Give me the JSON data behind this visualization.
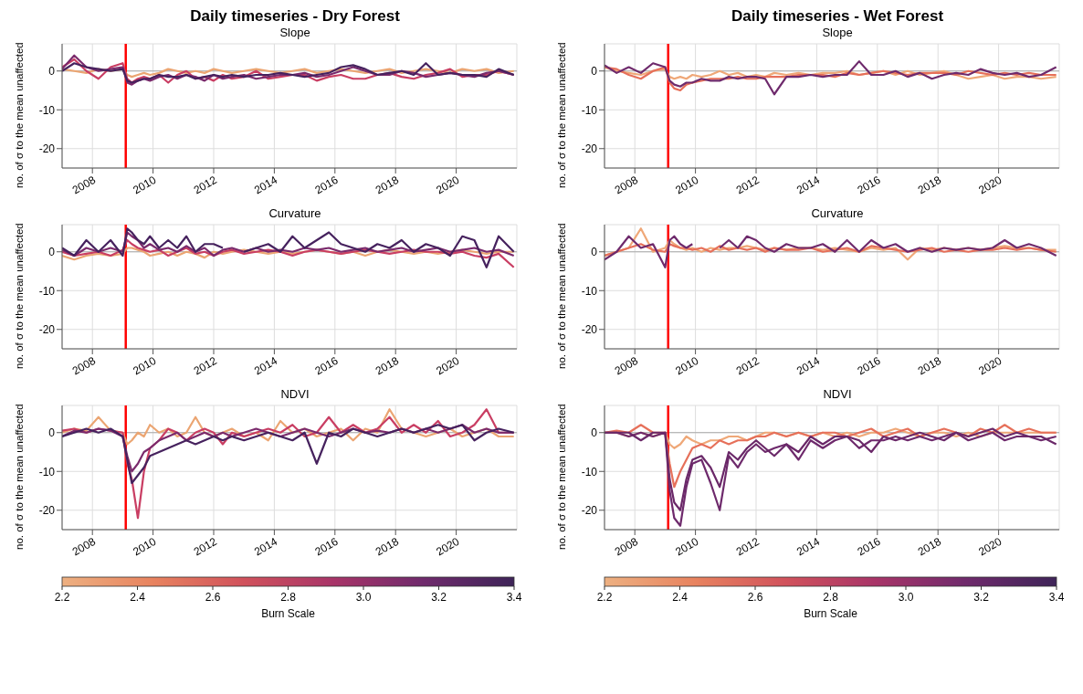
{
  "chart_data": [
    {
      "type": "line",
      "title": "Daily timeseries - Dry Forest",
      "subtitle": "Slope",
      "ylabel": "no. of σ to the mean unaffected",
      "x": [
        2007.0,
        2007.4,
        2007.8,
        2008.2,
        2008.6,
        2009.0,
        2009.15,
        2009.3,
        2009.5,
        2009.7,
        2009.9,
        2010.2,
        2010.5,
        2010.8,
        2011.1,
        2011.4,
        2011.7,
        2012.0,
        2012.3,
        2012.6,
        2013.0,
        2013.4,
        2013.8,
        2014.2,
        2014.6,
        2015.0,
        2015.4,
        2015.8,
        2016.2,
        2016.6,
        2017.0,
        2017.4,
        2017.8,
        2018.2,
        2018.6,
        2019.0,
        2019.4,
        2019.8,
        2020.2,
        2020.6,
        2021.0,
        2021.4,
        2021.9
      ],
      "xlim": [
        2007,
        2022
      ],
      "xticks": [
        2008,
        2010,
        2012,
        2014,
        2016,
        2018,
        2020
      ],
      "ylim": [
        -25,
        7
      ],
      "yticks": [
        -20,
        -10,
        0
      ],
      "grid": true,
      "ref_lines": [
        {
          "axis": "y",
          "value": 0,
          "color": "#aaaaaa"
        },
        {
          "axis": "x",
          "value": 2009.1,
          "color": "#ff0000"
        }
      ],
      "series": [
        {
          "color": "#eba572",
          "values": [
            0.5,
            0,
            -0.5,
            0.5,
            0,
            0.5,
            -1,
            -1.5,
            -1,
            -0.5,
            -1,
            -0.5,
            0.5,
            0,
            -0.5,
            0,
            -0.5,
            0.5,
            0,
            -0.5,
            0,
            0.5,
            0,
            -0.5,
            0,
            0.5,
            -0.5,
            0,
            0.5,
            0,
            -0.5,
            0,
            0.5,
            -0.5,
            0,
            0.5,
            0,
            -0.5,
            0.5,
            0,
            0.5,
            -0.5,
            0
          ]
        },
        {
          "color": "#c93e63",
          "values": [
            1,
            3,
            0,
            -2,
            1,
            2,
            -2,
            -3,
            -2,
            -1.5,
            -2,
            -1,
            -3,
            -1,
            0,
            -2,
            -1.5,
            -2.5,
            -1,
            -2,
            -1.5,
            0,
            -2,
            -1.5,
            -1,
            -1,
            -2.5,
            -1.5,
            -1,
            -2,
            -2,
            -1,
            -0.5,
            -1.5,
            -2,
            -1,
            -0.5,
            0.5,
            -1.5,
            -1,
            -1,
            0,
            -1
          ]
        },
        {
          "color": "#7a2a6c",
          "values": [
            0.5,
            4,
            1,
            0,
            0.5,
            1,
            -3,
            -3.5,
            -2.5,
            -2,
            -2.5,
            -1.5,
            -1,
            -2,
            -1,
            -1.5,
            -2.5,
            -1,
            -2,
            -1.5,
            -1,
            -2,
            -1.5,
            -1,
            -1,
            -0.5,
            -1.5,
            -1,
            0,
            1,
            0,
            -1,
            -1,
            0,
            -0.5,
            -1.5,
            -1,
            -0.5,
            -1,
            -1.5,
            -0.5,
            0,
            -1
          ]
        },
        {
          "color": "#46225e",
          "values": [
            0,
            2,
            1,
            0.5,
            0,
            0.5,
            -2.5,
            -3,
            -2.5,
            -2,
            -2,
            -1,
            -1.5,
            -1.5,
            -1,
            -2,
            -1.5,
            -1,
            -1.5,
            -1,
            -1.5,
            -1,
            -1,
            -0.5,
            -1,
            -1.5,
            -1,
            -0.5,
            1,
            1.5,
            0.5,
            -1,
            -0.5,
            0,
            -1,
            2,
            -1,
            -0.5,
            -1,
            -1,
            -1.5,
            0.5,
            -1
          ]
        }
      ]
    },
    {
      "type": "line",
      "title": "Daily timeseries - Wet Forest",
      "subtitle": "Slope",
      "ylabel": "no. of σ to the mean unaffected",
      "x": [
        2007.0,
        2007.4,
        2007.8,
        2008.2,
        2008.6,
        2009.0,
        2009.15,
        2009.3,
        2009.5,
        2009.7,
        2009.9,
        2010.2,
        2010.5,
        2010.8,
        2011.1,
        2011.4,
        2011.7,
        2012.0,
        2012.3,
        2012.6,
        2013.0,
        2013.4,
        2013.8,
        2014.2,
        2014.6,
        2015.0,
        2015.4,
        2015.8,
        2016.2,
        2016.6,
        2017.0,
        2017.4,
        2017.8,
        2018.2,
        2018.6,
        2019.0,
        2019.4,
        2019.8,
        2020.2,
        2020.6,
        2021.0,
        2021.4,
        2021.9
      ],
      "xlim": [
        2007,
        2022
      ],
      "xticks": [
        2008,
        2010,
        2012,
        2014,
        2016,
        2018,
        2020
      ],
      "ylim": [
        -25,
        7
      ],
      "yticks": [
        -20,
        -10,
        0
      ],
      "grid": true,
      "ref_lines": [
        {
          "axis": "y",
          "value": 0,
          "color": "#aaaaaa"
        },
        {
          "axis": "x",
          "value": 2009.1,
          "color": "#ff0000"
        }
      ],
      "series": [
        {
          "color": "#efa878",
          "values": [
            1,
            0,
            -0.5,
            -1,
            0,
            0.5,
            -1.5,
            -2,
            -1.5,
            -2,
            -1,
            -1.5,
            -1,
            0,
            -1,
            -0.5,
            -1.5,
            -1,
            -1.5,
            -0.5,
            -1,
            -0.5,
            -1,
            -0.5,
            -0.5,
            0,
            -1,
            -0.5,
            0,
            -1,
            0,
            -1,
            -0.5,
            0,
            -1,
            -2,
            -1.5,
            -1,
            -2,
            -1.5,
            -1.5,
            -2,
            -1.5
          ]
        },
        {
          "color": "#e6705a",
          "values": [
            1,
            0.5,
            -1,
            -2,
            0,
            1,
            -3,
            -4.5,
            -5,
            -3.5,
            -3,
            -2.5,
            -2,
            -2,
            -2,
            -1.5,
            -2,
            -2,
            -1.5,
            -1.5,
            -1.5,
            -1,
            -1,
            -1,
            -1.5,
            -0.5,
            -1,
            -0.5,
            0,
            -0.5,
            -1,
            -0.5,
            -0.5,
            -0.5,
            -1,
            0,
            -0.5,
            -1,
            -0.5,
            -1,
            -0.5,
            -1,
            -1
          ]
        },
        {
          "color": "#6e2a6c",
          "values": [
            1.5,
            -0.5,
            1,
            -0.5,
            2,
            1,
            -2.5,
            -3.5,
            -4,
            -3,
            -3,
            -2,
            -2.5,
            -2.5,
            -1.5,
            -2,
            -1.5,
            -1.5,
            -2,
            -6,
            -1.5,
            -1.5,
            -1,
            -1.5,
            -1,
            -1,
            2.5,
            -1,
            -1,
            0,
            -1.5,
            -0.5,
            -2,
            -1,
            -0.5,
            -1,
            0.5,
            -0.5,
            -1,
            -0.5,
            -1.5,
            -1,
            1
          ]
        }
      ]
    },
    {
      "type": "line",
      "subtitle": "Curvature",
      "ylabel": "no. of σ to the mean unaffected",
      "x": [
        2007.0,
        2007.4,
        2007.8,
        2008.2,
        2008.6,
        2009.0,
        2009.15,
        2009.3,
        2009.5,
        2009.7,
        2009.9,
        2010.2,
        2010.5,
        2010.8,
        2011.1,
        2011.4,
        2011.7,
        2012.0,
        2012.3,
        2012.6,
        2013.0,
        2013.4,
        2013.8,
        2014.2,
        2014.6,
        2015.0,
        2015.4,
        2015.8,
        2016.2,
        2016.6,
        2017.0,
        2017.4,
        2017.8,
        2018.2,
        2018.6,
        2019.0,
        2019.4,
        2019.8,
        2020.2,
        2020.6,
        2021.0,
        2021.4,
        2021.9
      ],
      "xlim": [
        2007,
        2022
      ],
      "xticks": [
        2008,
        2010,
        2012,
        2014,
        2016,
        2018,
        2020
      ],
      "ylim": [
        -25,
        7
      ],
      "yticks": [
        -20,
        -10,
        0
      ],
      "grid": true,
      "ref_lines": [
        {
          "axis": "y",
          "value": 0,
          "color": "#aaaaaa"
        },
        {
          "axis": "x",
          "value": 2009.1,
          "color": "#ff0000"
        }
      ],
      "series": [
        {
          "color": "#eba572",
          "values": [
            -1,
            -2,
            -1,
            -0.5,
            -1,
            -0.5,
            1,
            1,
            0.5,
            0,
            -1,
            -0.5,
            0,
            -1,
            0,
            -0.5,
            -1.5,
            0,
            -0.5,
            0,
            0.5,
            0,
            -0.5,
            0,
            -0.5,
            0,
            0.5,
            0,
            -0.5,
            0,
            -1,
            0,
            0.5,
            0,
            -0.5,
            0,
            -0.5,
            0,
            0.5,
            0,
            -0.5,
            0,
            0
          ]
        },
        {
          "color": "#c93e63",
          "values": [
            0,
            -1,
            -0.5,
            0,
            -1,
            0.5,
            3,
            2,
            1,
            0.5,
            0,
            0.5,
            -1,
            0,
            1,
            -0.5,
            0,
            -1,
            0,
            0.5,
            -0.5,
            0,
            0.5,
            0,
            -1,
            0,
            0.5,
            0,
            -0.5,
            0,
            0.5,
            0,
            -0.5,
            0,
            0.5,
            0,
            0,
            -0.5,
            0,
            -1,
            -1.5,
            -0.5,
            -4
          ]
        },
        {
          "color": "#7a2a6c",
          "values": [
            0.5,
            -1,
            1,
            0,
            1,
            0,
            5,
            4,
            3,
            1,
            2,
            0.5,
            1,
            0,
            1.5,
            0,
            1,
            -1,
            0.5,
            1,
            0,
            1,
            0,
            0.5,
            0,
            1,
            0.5,
            1,
            0,
            0.5,
            1,
            0,
            0.5,
            1,
            0,
            0.5,
            1,
            0,
            0.5,
            1,
            0,
            0.5,
            -1
          ]
        },
        {
          "color": "#46225e",
          "values": [
            1,
            -1,
            3,
            0,
            3,
            -1,
            6,
            5,
            3,
            2,
            4,
            1,
            3,
            1,
            4,
            0,
            2,
            2,
            1,
            null,
            0,
            1,
            2,
            0,
            4,
            1,
            3,
            5,
            2,
            1,
            0,
            2,
            1,
            3,
            0,
            2,
            1,
            -1,
            4,
            3,
            -4,
            4,
            0
          ]
        }
      ]
    },
    {
      "type": "line",
      "subtitle": "Curvature",
      "ylabel": "no. of σ to the mean unaffected",
      "x": [
        2007.0,
        2007.4,
        2007.8,
        2008.2,
        2008.6,
        2009.0,
        2009.15,
        2009.3,
        2009.5,
        2009.7,
        2009.9,
        2010.2,
        2010.5,
        2010.8,
        2011.1,
        2011.4,
        2011.7,
        2012.0,
        2012.3,
        2012.6,
        2013.0,
        2013.4,
        2013.8,
        2014.2,
        2014.6,
        2015.0,
        2015.4,
        2015.8,
        2016.2,
        2016.6,
        2017.0,
        2017.4,
        2017.8,
        2018.2,
        2018.6,
        2019.0,
        2019.4,
        2019.8,
        2020.2,
        2020.6,
        2021.0,
        2021.4,
        2021.9
      ],
      "xlim": [
        2007,
        2022
      ],
      "xticks": [
        2008,
        2010,
        2012,
        2014,
        2016,
        2018,
        2020
      ],
      "ylim": [
        -25,
        7
      ],
      "yticks": [
        -20,
        -10,
        0
      ],
      "grid": true,
      "ref_lines": [
        {
          "axis": "y",
          "value": 0,
          "color": "#aaaaaa"
        },
        {
          "axis": "x",
          "value": 2009.1,
          "color": "#ff0000"
        }
      ],
      "series": [
        {
          "color": "#efa878",
          "values": [
            -1,
            0,
            1,
            6,
            0,
            1,
            3,
            2,
            1,
            0.5,
            1,
            0,
            1,
            0.5,
            1,
            1,
            1.5,
            1,
            0.5,
            1,
            0.5,
            1,
            1,
            0.5,
            1,
            0.5,
            0,
            1,
            0.5,
            1,
            -2,
            1,
            0.5,
            1,
            0.5,
            1,
            0.5,
            1,
            1.5,
            1,
            1,
            0.5,
            0.5
          ]
        },
        {
          "color": "#e6705a",
          "values": [
            -1,
            0,
            1,
            2,
            0.5,
            0,
            2,
            1.5,
            1,
            1,
            0.5,
            1,
            0,
            1.5,
            0.5,
            1,
            0.5,
            1,
            0,
            1,
            0.5,
            0.5,
            1,
            0,
            0.5,
            1,
            0,
            1.5,
            1,
            0.5,
            0,
            0.5,
            1,
            0,
            0.5,
            0,
            0.5,
            0.5,
            1,
            0.5,
            1,
            0.5,
            0
          ]
        },
        {
          "color": "#6e2a6c",
          "values": [
            -2,
            0,
            4,
            1,
            2,
            -4,
            3,
            4,
            2,
            1,
            2,
            null,
            null,
            1,
            3,
            1,
            4,
            3,
            1,
            0,
            2,
            1,
            1,
            2,
            0,
            3,
            0,
            3,
            1,
            2,
            0,
            1,
            0,
            1,
            0.5,
            1,
            0.5,
            1,
            3,
            1,
            2,
            1,
            -1
          ]
        }
      ]
    },
    {
      "type": "line",
      "subtitle": "NDVI",
      "ylabel": "no. of σ to the mean unaffected",
      "x": [
        2007.0,
        2007.4,
        2007.8,
        2008.2,
        2008.6,
        2009.0,
        2009.15,
        2009.3,
        2009.5,
        2009.7,
        2009.9,
        2010.2,
        2010.5,
        2010.8,
        2011.1,
        2011.4,
        2011.7,
        2012.0,
        2012.3,
        2012.6,
        2013.0,
        2013.4,
        2013.8,
        2014.2,
        2014.6,
        2015.0,
        2015.4,
        2015.8,
        2016.2,
        2016.6,
        2017.0,
        2017.4,
        2017.8,
        2018.2,
        2018.6,
        2019.0,
        2019.4,
        2019.8,
        2020.2,
        2020.6,
        2021.0,
        2021.4,
        2021.9
      ],
      "xlim": [
        2007,
        2022
      ],
      "xticks": [
        2008,
        2010,
        2012,
        2014,
        2016,
        2018,
        2020
      ],
      "ylim": [
        -25,
        7
      ],
      "yticks": [
        -20,
        -10,
        0
      ],
      "grid": true,
      "ref_lines": [
        {
          "axis": "y",
          "value": 0,
          "color": "#aaaaaa"
        },
        {
          "axis": "x",
          "value": 2009.1,
          "color": "#ff0000"
        }
      ],
      "clabel": "Burn Scale",
      "clim": [
        2.2,
        3.4
      ],
      "cticks": [
        2.2,
        2.4,
        2.6,
        2.8,
        {
          "value": 3,
          "label": "3.0"
        },
        3.2,
        3.4
      ],
      "series": [
        {
          "color": "#eba572",
          "values": [
            0,
            1,
            0.5,
            4,
            0.5,
            0,
            -3,
            -2,
            0,
            -1,
            2,
            0,
            1,
            -1,
            0,
            4,
            0,
            -1,
            0,
            1,
            -1,
            0,
            -2,
            3,
            0,
            1,
            -1,
            0,
            1,
            -2,
            1,
            0,
            6,
            1,
            0,
            -1,
            0,
            1,
            -1,
            0,
            1,
            -1,
            -1
          ]
        },
        {
          "color": "#c93e63",
          "values": [
            0.5,
            1,
            0,
            1,
            0.5,
            0,
            -8,
            -12,
            -22,
            -10,
            -4,
            -2,
            1,
            0,
            -2,
            0,
            1,
            0,
            -3,
            0,
            -1,
            0,
            1,
            0,
            2,
            -1,
            0,
            4,
            0,
            2,
            0,
            1,
            4,
            0,
            2,
            0,
            3,
            -1,
            0,
            2,
            6,
            0,
            0
          ]
        },
        {
          "color": "#7a2a6c",
          "values": [
            -1,
            0.5,
            0,
            1,
            0.5,
            -1,
            -6,
            -10,
            -8,
            -5,
            -4,
            -2,
            -1,
            0,
            -2,
            -1,
            0,
            -1,
            0,
            -1,
            0,
            1,
            0,
            -1,
            0,
            1,
            0,
            -1,
            0,
            1,
            0,
            0.5,
            0,
            1,
            0,
            1,
            0,
            1,
            2,
            0,
            1,
            0,
            0
          ]
        },
        {
          "color": "#46225e",
          "values": [
            -1,
            0,
            1,
            0,
            1,
            -1,
            -7,
            -13,
            -11,
            -9,
            -6,
            -5,
            -4,
            -3,
            -2,
            -3,
            -2,
            -1,
            -2,
            -1,
            -2,
            -1,
            0,
            -1,
            -2,
            0,
            -8,
            0,
            -1,
            1,
            0,
            -1,
            0,
            1,
            0,
            1,
            2,
            1,
            2,
            -2,
            0,
            1,
            0
          ]
        }
      ]
    },
    {
      "type": "line",
      "subtitle": "NDVI",
      "ylabel": "no. of σ to the mean unaffected",
      "x": [
        2007.0,
        2007.4,
        2007.8,
        2008.2,
        2008.6,
        2009.0,
        2009.15,
        2009.3,
        2009.5,
        2009.7,
        2009.9,
        2010.2,
        2010.5,
        2010.8,
        2011.1,
        2011.4,
        2011.7,
        2012.0,
        2012.3,
        2012.6,
        2013.0,
        2013.4,
        2013.8,
        2014.2,
        2014.6,
        2015.0,
        2015.4,
        2015.8,
        2016.2,
        2016.6,
        2017.0,
        2017.4,
        2017.8,
        2018.2,
        2018.6,
        2019.0,
        2019.4,
        2019.8,
        2020.2,
        2020.6,
        2021.0,
        2021.4,
        2021.9
      ],
      "xlim": [
        2007,
        2022
      ],
      "xticks": [
        2008,
        2010,
        2012,
        2014,
        2016,
        2018,
        2020
      ],
      "ylim": [
        -25,
        7
      ],
      "yticks": [
        -20,
        -10,
        0
      ],
      "grid": true,
      "ref_lines": [
        {
          "axis": "y",
          "value": 0,
          "color": "#aaaaaa"
        },
        {
          "axis": "x",
          "value": 2009.1,
          "color": "#ff0000"
        }
      ],
      "clabel": "Burn Scale",
      "clim": [
        2.2,
        3.4
      ],
      "cticks": [
        2.2,
        2.4,
        2.6,
        2.8,
        {
          "value": 3,
          "label": "3.0"
        },
        3.2,
        3.4
      ],
      "series": [
        {
          "color": "#efa878",
          "values": [
            0,
            0,
            -1,
            0,
            -1,
            0,
            -3,
            -4,
            -3,
            -1,
            -2,
            -3,
            -2,
            -2,
            -1,
            -1,
            -2,
            -1,
            0,
            0,
            -1,
            0,
            -1,
            0,
            -1,
            0,
            -1,
            0,
            0,
            1,
            0,
            -1,
            0,
            0,
            -1,
            0,
            -1,
            0,
            0,
            0,
            0,
            0,
            0
          ]
        },
        {
          "color": "#e6705a",
          "values": [
            0,
            0.5,
            0,
            2,
            0,
            0,
            -8,
            -14,
            -10,
            -7,
            -4,
            -3,
            -4,
            -2,
            -3,
            -2,
            -2,
            -1,
            -1,
            0,
            -1,
            0,
            -1,
            0,
            0,
            -1,
            0,
            1,
            -1,
            0,
            1,
            -1,
            0,
            1,
            0,
            -1,
            1,
            0,
            2,
            0,
            1,
            0,
            0
          ]
        },
        {
          "color": "#6e2a6c",
          "values": [
            0,
            0,
            -1,
            0,
            -1,
            0,
            -15,
            -22,
            -24,
            -14,
            -8,
            -7,
            -13,
            -20,
            -6,
            -9,
            -5,
            -3,
            -5,
            -4,
            -3,
            -7,
            -2,
            -4,
            -2,
            -1,
            -4,
            -2,
            -2,
            -1,
            -2,
            -1,
            -2,
            -1,
            0,
            -2,
            -1,
            0,
            -2,
            -1,
            -1,
            -2,
            -1
          ]
        },
        {
          "color": "#6a2868",
          "values": [
            0,
            0,
            0,
            -2,
            0,
            0,
            -12,
            -18,
            -20,
            -12,
            -7,
            -6,
            -9,
            -14,
            -5,
            -7,
            -4,
            -2,
            -4,
            -6,
            -3,
            -5,
            -1,
            -3,
            -1,
            -1,
            -2,
            -5,
            -1,
            -2,
            -1,
            0,
            -1,
            -2,
            0,
            -1,
            0,
            1,
            -1,
            0,
            -1,
            -1,
            -3
          ]
        }
      ]
    }
  ]
}
